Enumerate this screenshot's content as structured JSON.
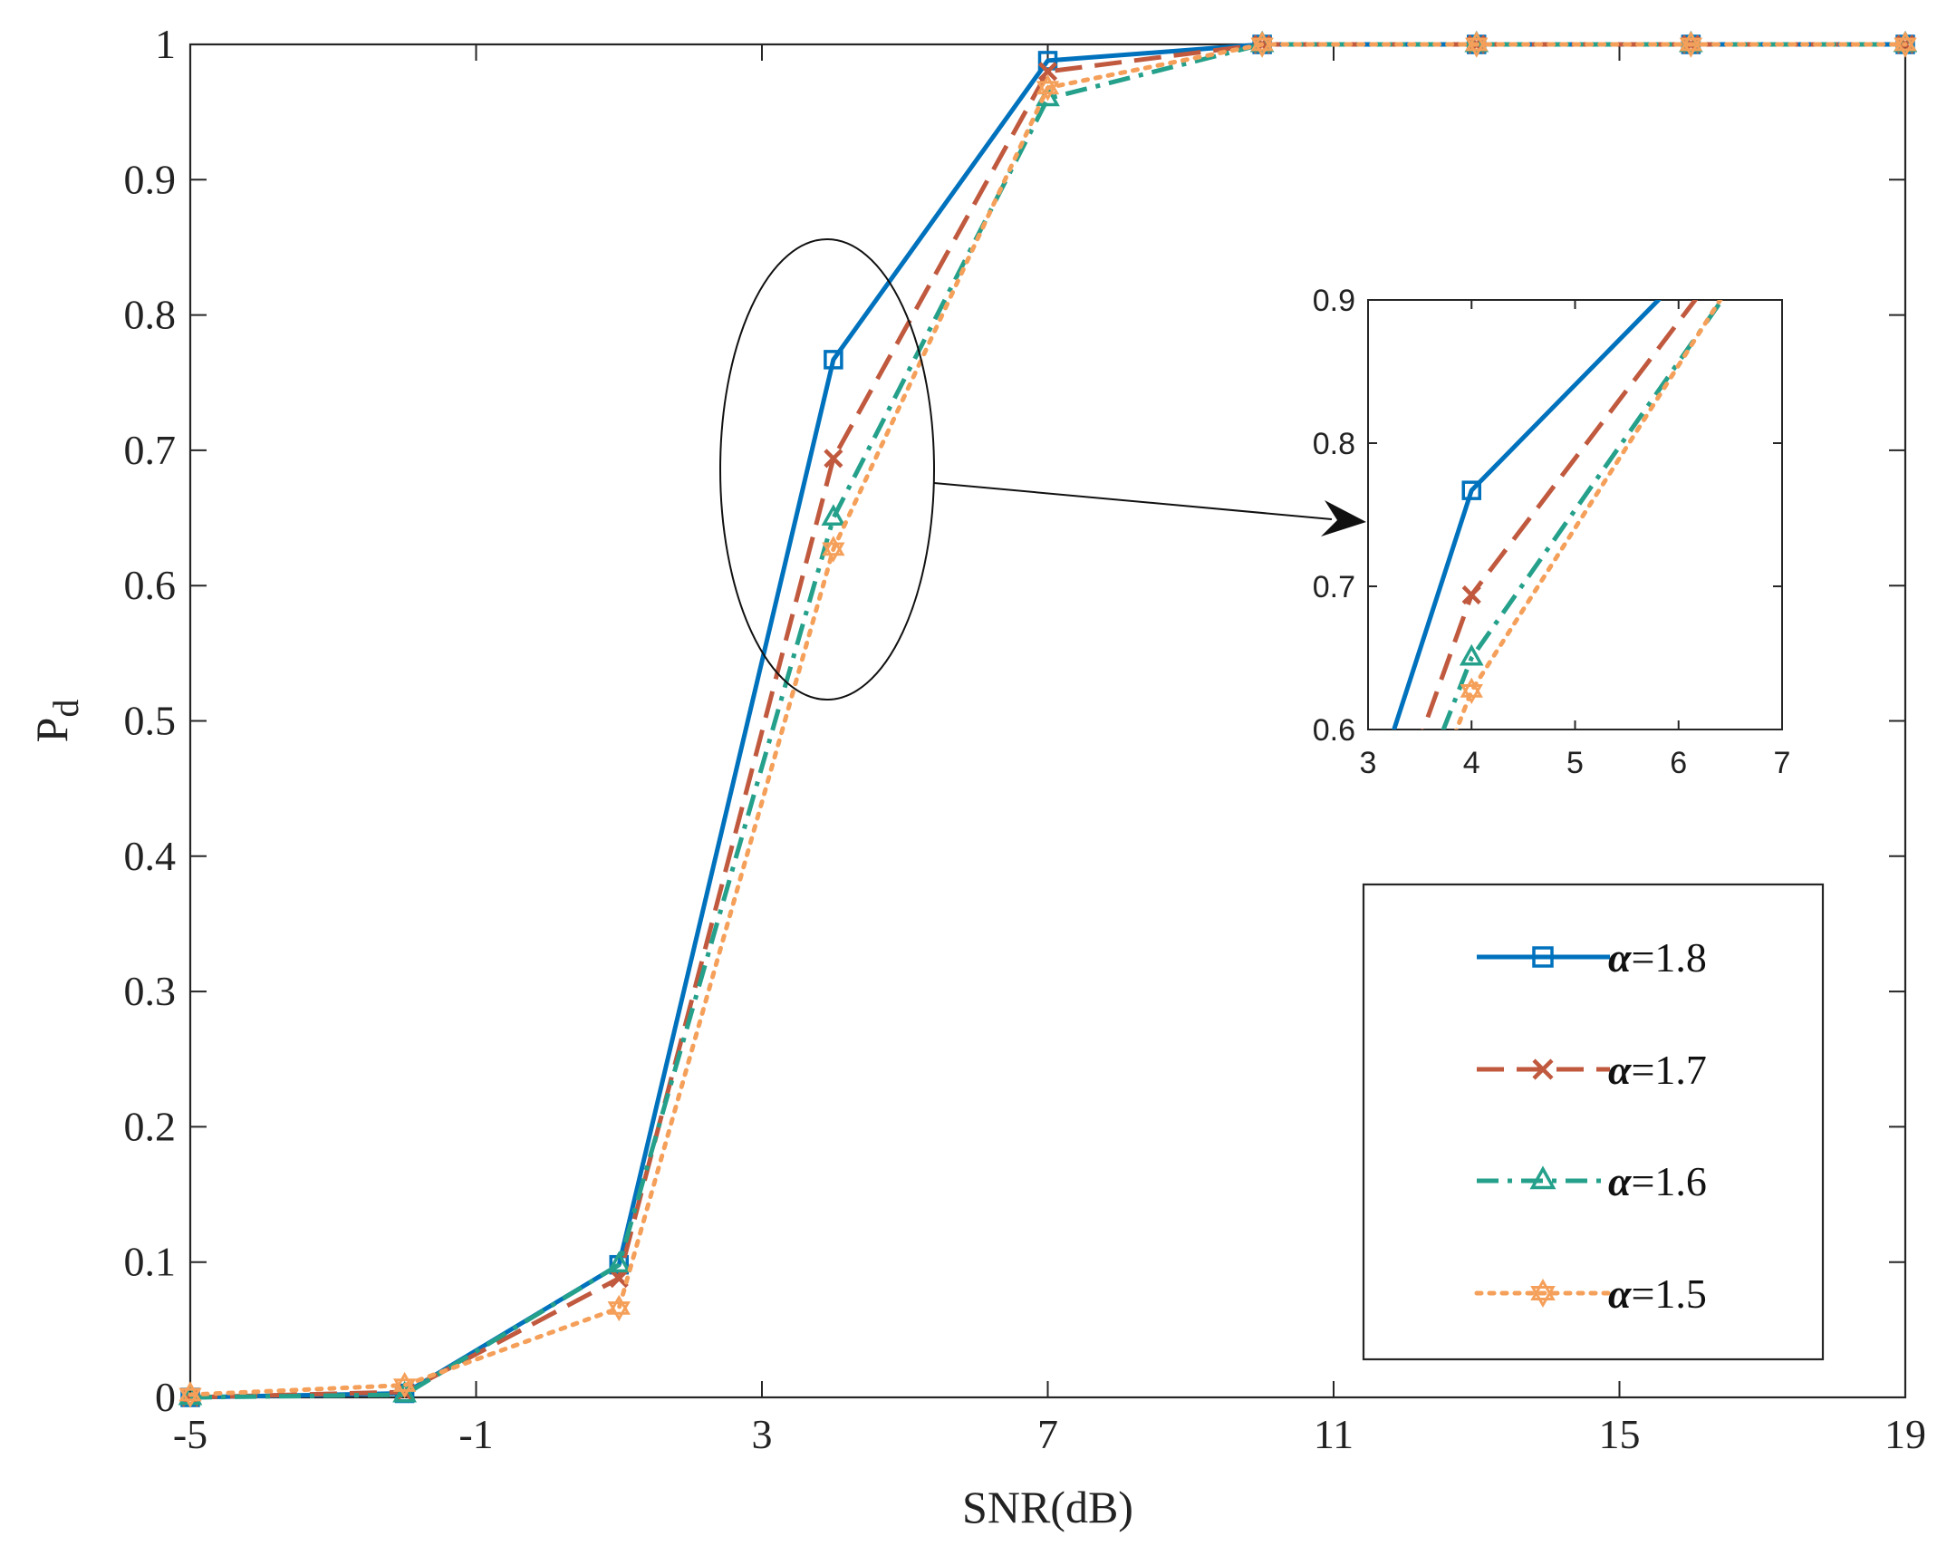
{
  "chart_data": {
    "type": "line",
    "title": "",
    "xlabel": "SNR(dB)",
    "ylabel_main": "P",
    "ylabel_sub": "d",
    "xlim": [
      -5,
      19
    ],
    "ylim": [
      0,
      1
    ],
    "xticks": [
      "-5",
      "-1",
      "3",
      "7",
      "11",
      "15",
      "19"
    ],
    "yticks": [
      "0",
      "0.1",
      "0.2",
      "0.3",
      "0.4",
      "0.5",
      "0.6",
      "0.7",
      "0.8",
      "0.9",
      "1"
    ],
    "grid": false,
    "legend_position": "bottom-right",
    "x": [
      -5,
      -2,
      1,
      4,
      7,
      10,
      13,
      16,
      19
    ],
    "series": [
      {
        "name": "=1.8",
        "symbol": "α",
        "color": "#0072BD",
        "style": "solid",
        "marker": "square",
        "values": [
          0.0,
          0.003,
          0.098,
          0.767,
          0.988,
          1.0,
          1.0,
          1.0,
          1.0
        ]
      },
      {
        "name": "=1.7",
        "symbol": "α",
        "color": "#C0593E",
        "style": "dashed",
        "marker": "x",
        "values": [
          0.0,
          0.004,
          0.088,
          0.694,
          0.98,
          1.0,
          1.0,
          1.0,
          1.0
        ]
      },
      {
        "name": "=1.6",
        "symbol": "α",
        "color": "#24A08B",
        "style": "dashdot",
        "marker": "triangle",
        "values": [
          0.0,
          0.002,
          0.098,
          0.65,
          0.96,
          1.0,
          1.0,
          1.0,
          1.0
        ]
      },
      {
        "name": "=1.5",
        "symbol": "α",
        "color": "#F5A05A",
        "style": "dotted",
        "marker": "hexagram",
        "values": [
          0.002,
          0.009,
          0.066,
          0.627,
          0.968,
          1.0,
          1.0,
          1.0,
          1.0
        ]
      }
    ],
    "inset": {
      "xlim": [
        3,
        7
      ],
      "ylim": [
        0.6,
        0.9
      ],
      "xticks": [
        "3",
        "4",
        "5",
        "6",
        "7"
      ],
      "yticks": [
        "0.6",
        "0.7",
        "0.8",
        "0.9"
      ]
    },
    "annotation": {
      "type": "ellipse-with-arrow",
      "target": "inset"
    }
  }
}
